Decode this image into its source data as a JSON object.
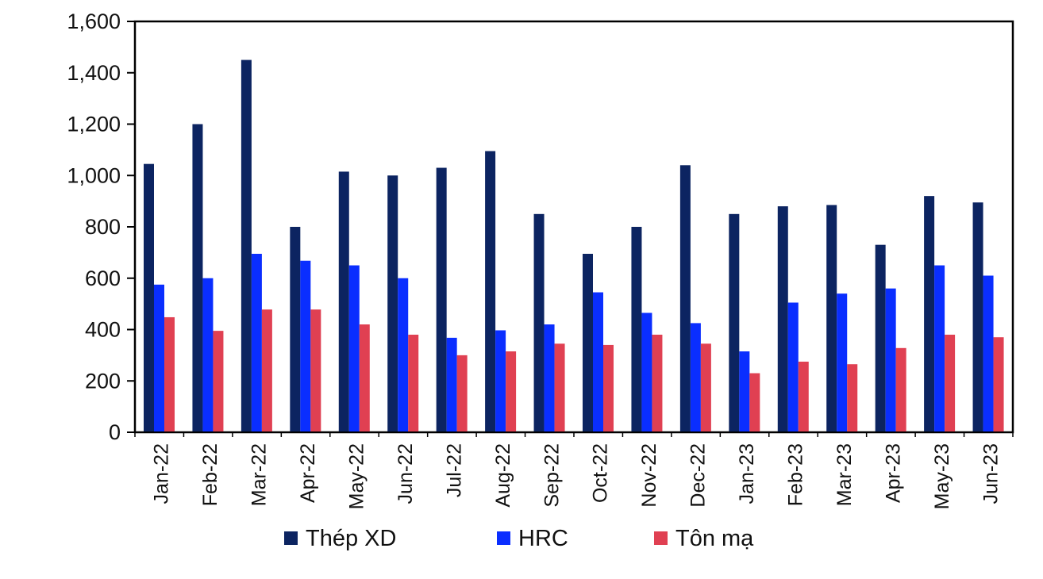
{
  "chart_data": {
    "type": "bar",
    "categories": [
      "Jan-22",
      "Feb-22",
      "Mar-22",
      "Apr-22",
      "May-22",
      "Jun-22",
      "Jul-22",
      "Aug-22",
      "Sep-22",
      "Oct-22",
      "Nov-22",
      "Dec-22",
      "Jan-23",
      "Feb-23",
      "Mar-23",
      "Apr-23",
      "May-23",
      "Jun-23"
    ],
    "series": [
      {
        "name": "Thép XD",
        "color": "#0c2461",
        "values": [
          1045,
          1200,
          1450,
          800,
          1015,
          1000,
          1030,
          1095,
          850,
          695,
          800,
          1040,
          850,
          880,
          885,
          730,
          920,
          895
        ]
      },
      {
        "name": "HRC",
        "color": "#0a2eff",
        "values": [
          575,
          600,
          695,
          668,
          650,
          600,
          368,
          397,
          420,
          545,
          465,
          425,
          315,
          505,
          540,
          560,
          650,
          610
        ]
      },
      {
        "name": "Tôn mạ",
        "color": "#e04052",
        "values": [
          448,
          395,
          478,
          478,
          420,
          380,
          300,
          315,
          345,
          340,
          380,
          345,
          230,
          275,
          265,
          328,
          380,
          370
        ]
      }
    ],
    "ylim": [
      0,
      1600
    ],
    "yticks": [
      0,
      200,
      400,
      600,
      800,
      1000,
      1200,
      1400,
      1600
    ],
    "ytick_labels": [
      "0",
      "200",
      "400",
      "600",
      "800",
      "1,000",
      "1,200",
      "1,400",
      "1,600"
    ],
    "title": "",
    "xlabel": "",
    "ylabel": "",
    "grid": false,
    "legend": "bottom"
  }
}
